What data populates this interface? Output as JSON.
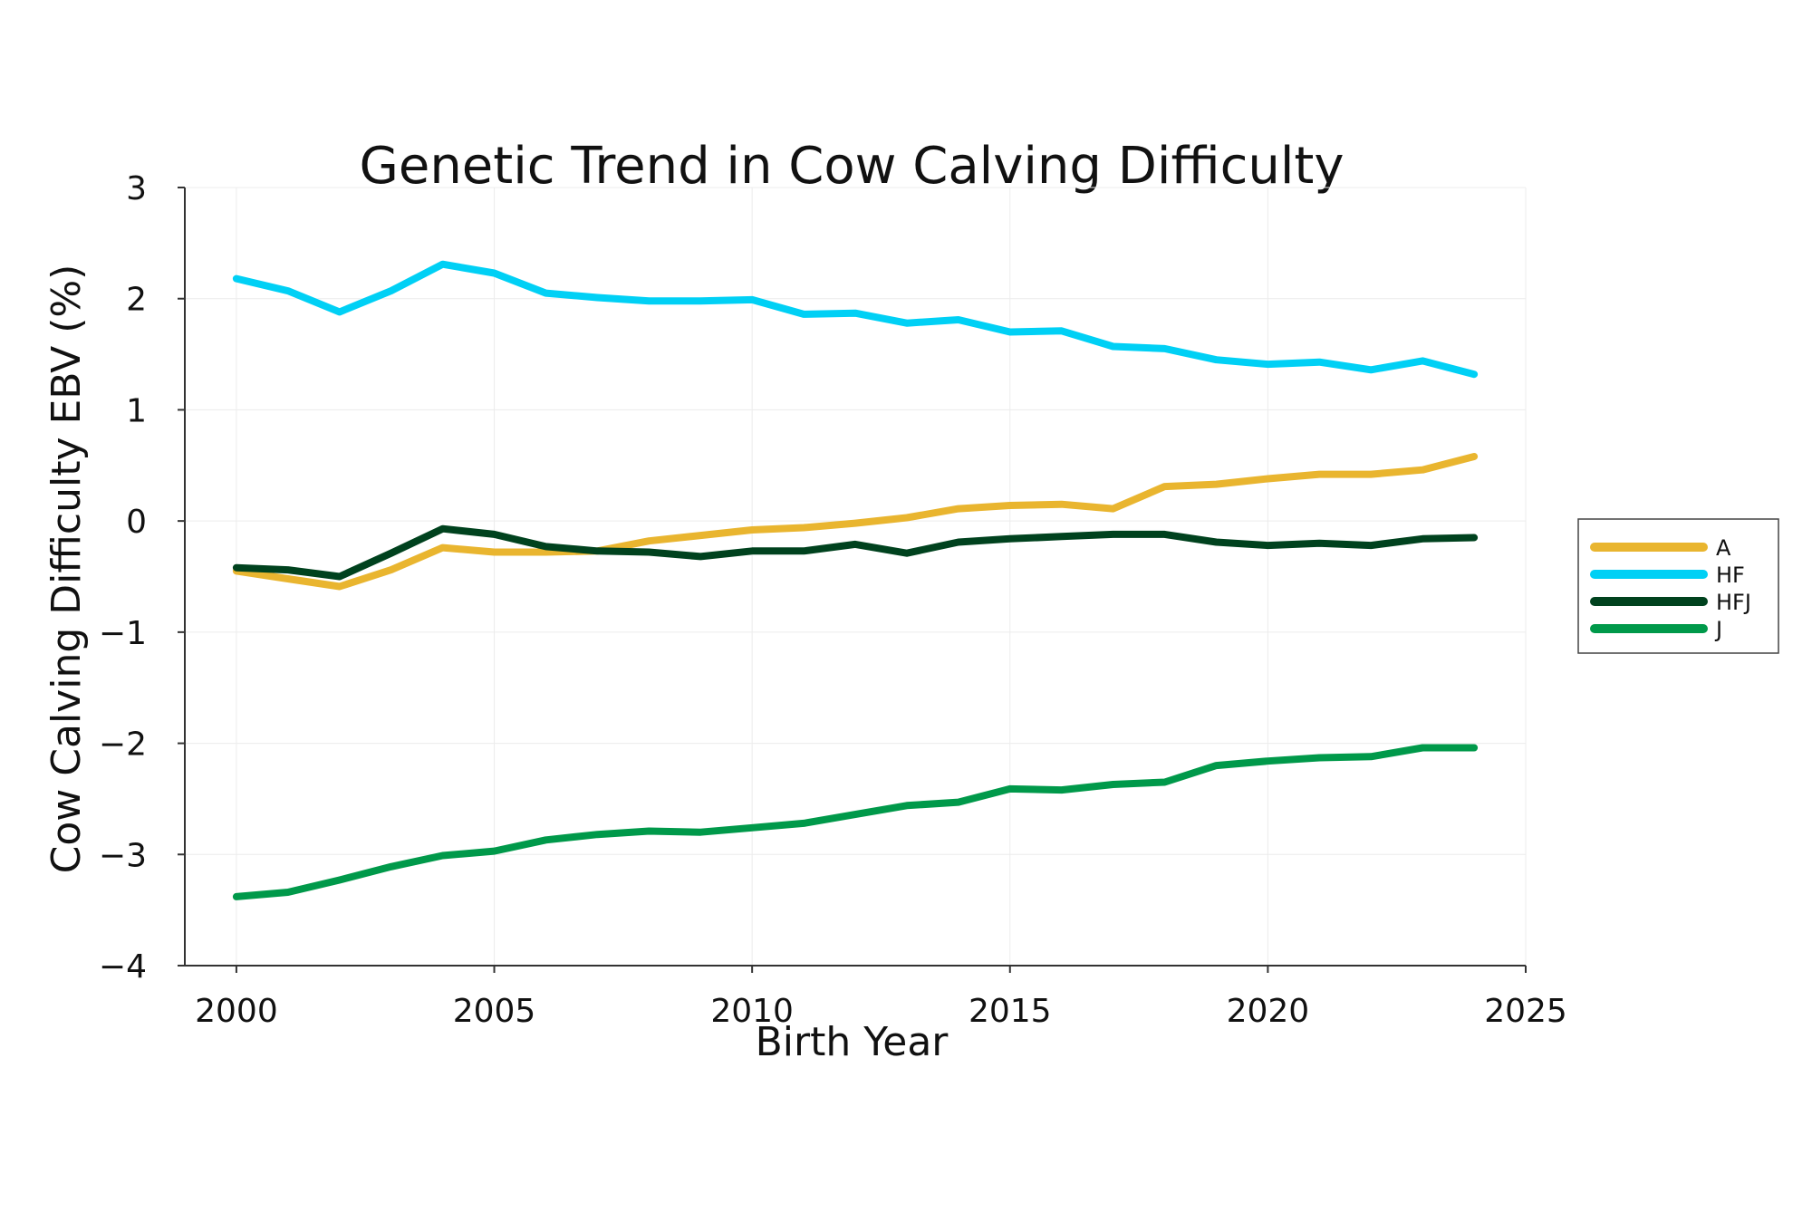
{
  "chart_data": {
    "type": "line",
    "title": "Genetic Trend in Cow Calving Difficulty",
    "xlabel": "Birth Year",
    "ylabel": "Cow Calving Difficulty EBV (%)",
    "xlim": [
      1999,
      2025
    ],
    "ylim": [
      -4,
      3
    ],
    "xticks": [
      2000,
      2005,
      2010,
      2015,
      2020,
      2025
    ],
    "yticks": [
      3,
      2,
      1,
      0,
      -1,
      -2,
      -3,
      -4
    ],
    "ytick_labels": [
      "3",
      "2",
      "1",
      "0",
      "−1",
      "−2",
      "−3",
      "−4"
    ],
    "grid": true,
    "legend_position": "right",
    "x": [
      2000,
      2001,
      2002,
      2003,
      2004,
      2005,
      2006,
      2007,
      2008,
      2009,
      2010,
      2011,
      2012,
      2013,
      2014,
      2015,
      2016,
      2017,
      2018,
      2019,
      2020,
      2021,
      2022,
      2023,
      2024
    ],
    "series": [
      {
        "name": "A",
        "color": "#E9B52F",
        "values": [
          -0.45,
          -0.52,
          -0.59,
          -0.44,
          -0.24,
          -0.28,
          -0.28,
          -0.27,
          -0.18,
          -0.13,
          -0.08,
          -0.06,
          -0.02,
          0.03,
          0.11,
          0.14,
          0.15,
          0.11,
          0.31,
          0.33,
          0.38,
          0.42,
          0.42,
          0.46,
          0.58
        ]
      },
      {
        "name": "HF",
        "color": "#00D0F5",
        "values": [
          2.18,
          2.07,
          1.88,
          2.07,
          2.31,
          2.23,
          2.05,
          2.01,
          1.98,
          1.98,
          1.99,
          1.86,
          1.87,
          1.78,
          1.81,
          1.7,
          1.71,
          1.57,
          1.55,
          1.45,
          1.41,
          1.43,
          1.36,
          1.44,
          1.32
        ]
      },
      {
        "name": "HFJ",
        "color": "#00421E",
        "values": [
          -0.42,
          -0.44,
          -0.5,
          -0.29,
          -0.07,
          -0.12,
          -0.23,
          -0.27,
          -0.28,
          -0.32,
          -0.27,
          -0.27,
          -0.21,
          -0.29,
          -0.19,
          -0.16,
          -0.14,
          -0.12,
          -0.12,
          -0.19,
          -0.22,
          -0.2,
          -0.22,
          -0.16,
          -0.15
        ]
      },
      {
        "name": "J",
        "color": "#00994A",
        "values": [
          -3.38,
          -3.34,
          -3.23,
          -3.11,
          -3.01,
          -2.97,
          -2.87,
          -2.82,
          -2.79,
          -2.8,
          -2.76,
          -2.72,
          -2.64,
          -2.56,
          -2.53,
          -2.41,
          -2.42,
          -2.37,
          -2.35,
          -2.2,
          -2.16,
          -2.13,
          -2.12,
          -2.04,
          -2.04
        ]
      }
    ]
  }
}
